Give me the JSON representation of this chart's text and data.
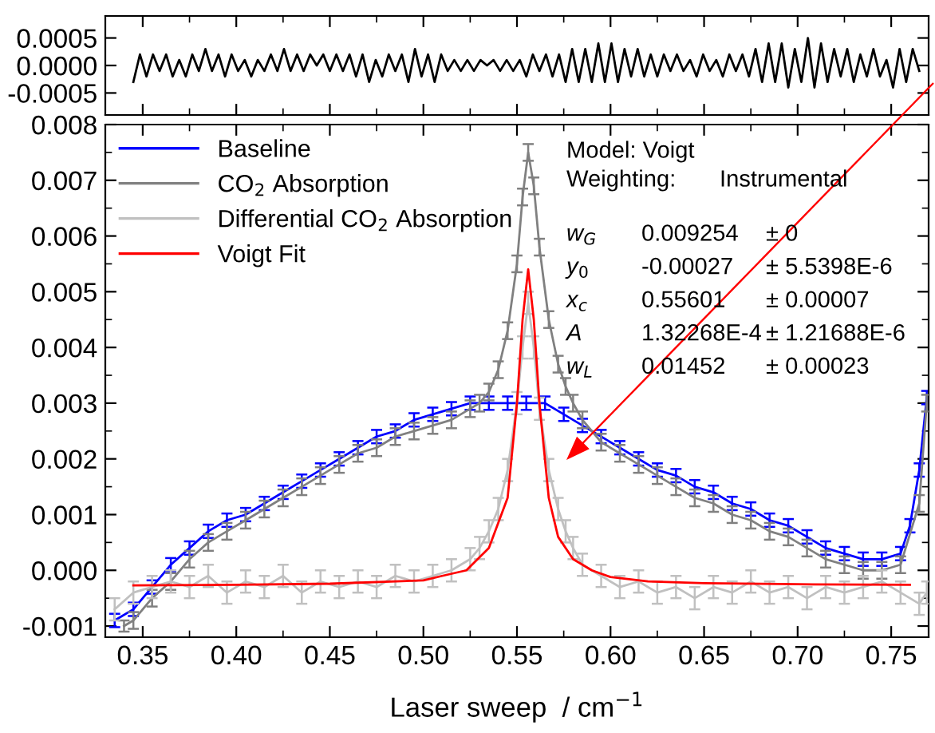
{
  "chart_data": [
    {
      "type": "line",
      "xlim": [
        0.33,
        0.77
      ],
      "xticks": [
        {
          "value": 0.35,
          "label": null
        },
        {
          "value": 0.4,
          "label": null
        },
        {
          "value": 0.45,
          "label": null
        },
        {
          "value": 0.5,
          "label": null
        },
        {
          "value": 0.55,
          "label": null
        },
        {
          "value": 0.6,
          "label": null
        },
        {
          "value": 0.65,
          "label": null
        },
        {
          "value": 0.7,
          "label": null
        },
        {
          "value": 0.75,
          "label": null
        }
      ],
      "ylim": [
        -0.0009,
        0.0009
      ],
      "yticks": [
        {
          "value": -0.0005,
          "label": "-0.0005"
        },
        {
          "value": 0,
          "label": "0.0000"
        },
        {
          "value": 0.0005,
          "label": "0.0005"
        }
      ],
      "tick_labels": "y",
      "grid": false,
      "legend": false,
      "marker": "none",
      "line_style": "solid",
      "series": [
        {
          "color": "#000000",
          "x": [
            0.345,
            0.3485,
            0.352,
            0.3555,
            0.359,
            0.3625,
            0.366,
            0.3695,
            0.373,
            0.3765,
            0.38,
            0.3835,
            0.387,
            0.3905,
            0.394,
            0.3975,
            0.401,
            0.4045,
            0.408,
            0.4115,
            0.415,
            0.4185,
            0.422,
            0.4255,
            0.429,
            0.4325,
            0.436,
            0.4395,
            0.443,
            0.4465,
            0.45,
            0.4535,
            0.457,
            0.4605,
            0.464,
            0.4675,
            0.471,
            0.4745,
            0.478,
            0.4815,
            0.485,
            0.4885,
            0.492,
            0.4955,
            0.499,
            0.5025,
            0.506,
            0.5095,
            0.513,
            0.5165,
            0.52,
            0.5235,
            0.527,
            0.5305,
            0.534,
            0.5375,
            0.541,
            0.5445,
            0.548,
            0.5515,
            0.555,
            0.5585,
            0.562,
            0.5655,
            0.569,
            0.5725,
            0.576,
            0.5795,
            0.583,
            0.5865,
            0.59,
            0.5935,
            0.597,
            0.6005,
            0.604,
            0.6075,
            0.611,
            0.6145,
            0.618,
            0.6215,
            0.625,
            0.6285,
            0.632,
            0.6355,
            0.639,
            0.6425,
            0.646,
            0.6495,
            0.653,
            0.6565,
            0.66,
            0.6635,
            0.667,
            0.6705,
            0.674,
            0.6775,
            0.681,
            0.6845,
            0.688,
            0.6915,
            0.695,
            0.6985,
            0.702,
            0.7055,
            0.709,
            0.7125,
            0.716,
            0.7195,
            0.723,
            0.7265,
            0.73,
            0.7335,
            0.737,
            0.7405,
            0.744,
            0.7475,
            0.751,
            0.7545,
            0.758,
            0.7615,
            0.765
          ],
          "values": [
            -0.0003,
            0.0002,
            -0.0002,
            0.0002,
            -0.0001,
            0.0002,
            -0.0002,
            0.0001,
            -0.0002,
            0.0002,
            -0.0001,
            0.0003,
            -0.0001,
            0.0002,
            -0.0002,
            0.0002,
            -0.0001,
            0.0001,
            -0.0002,
            0.0001,
            -0.0001,
            0.0002,
            -0.0001,
            0.0003,
            -0.0001,
            0.0002,
            -0.0001,
            0.0002,
            0.0,
            0.0002,
            -0.0001,
            0.0002,
            -0.0001,
            0.0002,
            -0.0002,
            0.0002,
            -0.0003,
            0.0001,
            -0.0002,
            0.0002,
            -0.0001,
            0.0002,
            -0.0003,
            0.0003,
            -0.0002,
            0.0002,
            -0.0003,
            0.0002,
            -0.0001,
            0.0001,
            -0.0001,
            0.0001,
            -0.0001,
            0.0001,
            0.0,
            0.0001,
            -0.0001,
            0.0001,
            -0.0001,
            0.0001,
            -0.0002,
            0.0002,
            -0.0001,
            0.0002,
            -0.0002,
            0.0002,
            -0.0003,
            0.0003,
            -0.0003,
            0.0003,
            -0.0003,
            0.0004,
            -0.0003,
            0.0004,
            -0.0003,
            0.0003,
            -0.0002,
            0.0003,
            -0.0002,
            0.0002,
            -0.0002,
            0.0002,
            -0.0001,
            0.0002,
            -0.0001,
            0.0001,
            -0.0002,
            0.0002,
            -0.0001,
            0.0001,
            -0.0002,
            0.0002,
            -0.0001,
            0.0002,
            -0.0002,
            0.0003,
            -0.0003,
            0.0004,
            -0.0003,
            0.0004,
            -0.0004,
            0.0003,
            -0.0003,
            0.0005,
            -0.0004,
            0.0004,
            -0.0003,
            0.0003,
            -0.0002,
            0.0003,
            -0.0003,
            0.0002,
            -0.0002,
            0.0003,
            -0.0002,
            0.0001,
            -0.0004,
            0.0003,
            -0.0003,
            0.0003,
            -0.0001
          ]
        }
      ]
    },
    {
      "type": "line",
      "xlabel": "Laser sweep  / cm$^{−1}$",
      "xlim": [
        0.33,
        0.77
      ],
      "xticks": [
        {
          "value": 0.35,
          "label": "0.35"
        },
        {
          "value": 0.4,
          "label": "0.40"
        },
        {
          "value": 0.45,
          "label": "0.45"
        },
        {
          "value": 0.5,
          "label": "0.50"
        },
        {
          "value": 0.55,
          "label": "0.55"
        },
        {
          "value": 0.6,
          "label": "0.60"
        },
        {
          "value": 0.65,
          "label": "0.65"
        },
        {
          "value": 0.7,
          "label": "0.70"
        },
        {
          "value": 0.75,
          "label": "0.75"
        }
      ],
      "ylim": [
        -0.0012,
        0.008
      ],
      "yticks": [
        {
          "value": -0.001,
          "label": "-0.001"
        },
        {
          "value": 0,
          "label": "0.000"
        },
        0.001,
        0.002,
        0.003,
        0.004,
        0.005,
        0.006,
        0.007,
        0.008
      ],
      "grid": false,
      "legend": "top left",
      "marker": "none",
      "line_style": "solid",
      "annotations": [
        "Model: Voigt",
        "Weighting:",
        "Instrumental",
        "w$_{G}$",
        "0.009254",
        "± 0",
        "y$_{0}$",
        "-0.00027",
        "± 5.5398E-6",
        "x$_{c}$",
        "0.55601",
        "± 0.00007",
        "A",
        "1.32268E-4",
        "± 1.21688E-6",
        "w$_{L}$",
        "0.01452",
        "± 0.00023"
      ],
      "series": [
        {
          "name": "Baseline",
          "color": "#0000ff",
          "x": [
            0.335,
            0.345,
            0.355,
            0.365,
            0.375,
            0.385,
            0.395,
            0.405,
            0.415,
            0.425,
            0.435,
            0.445,
            0.455,
            0.465,
            0.475,
            0.485,
            0.495,
            0.505,
            0.515,
            0.525,
            0.535,
            0.545,
            0.555,
            0.565,
            0.575,
            0.585,
            0.595,
            0.605,
            0.615,
            0.625,
            0.635,
            0.645,
            0.655,
            0.665,
            0.675,
            0.685,
            0.695,
            0.705,
            0.715,
            0.725,
            0.735,
            0.745,
            0.755,
            0.76,
            0.765,
            0.769
          ],
          "values": [
            -0.0009,
            -0.0007,
            -0.0003,
            0.0001,
            0.0004,
            0.0007,
            0.0009,
            0.001,
            0.0012,
            0.0014,
            0.0016,
            0.0018,
            0.002,
            0.0022,
            0.0024,
            0.0025,
            0.0027,
            0.0028,
            0.0029,
            0.003,
            0.003,
            0.003,
            0.003,
            0.003,
            0.0028,
            0.0026,
            0.0024,
            0.0022,
            0.002,
            0.0018,
            0.0017,
            0.0015,
            0.0014,
            0.0012,
            0.0011,
            0.0009,
            0.0008,
            0.0006,
            0.0004,
            0.0003,
            0.0002,
            0.0002,
            0.0003,
            0.0008,
            0.0018,
            0.0031
          ],
          "errors": [
            0.00012,
            0.00012,
            0.00012,
            0.00012,
            0.00012,
            0.00012,
            0.00012,
            0.00012,
            0.00012,
            0.00012,
            0.00012,
            0.00012,
            0.00012,
            0.00012,
            0.00012,
            0.00012,
            0.00012,
            0.00012,
            0.00012,
            0.00012,
            0.00012,
            0.00012,
            0.00012,
            0.00012,
            0.00012,
            0.00012,
            0.00012,
            0.00012,
            0.00012,
            0.00012,
            0.00012,
            0.00012,
            0.00012,
            0.00012,
            0.00012,
            0.00012,
            0.00012,
            0.00012,
            0.00012,
            0.00012,
            0.00012,
            0.00012,
            0.00012,
            0.00012,
            0.00012,
            0.00012
          ]
        },
        {
          "name": "CO$_{2}$ Absorption",
          "color": "#808080",
          "x": [
            0.34,
            0.345,
            0.355,
            0.365,
            0.375,
            0.385,
            0.395,
            0.405,
            0.415,
            0.425,
            0.435,
            0.445,
            0.455,
            0.465,
            0.475,
            0.485,
            0.495,
            0.505,
            0.515,
            0.525,
            0.53,
            0.535,
            0.54,
            0.545,
            0.55,
            0.553,
            0.556,
            0.559,
            0.562,
            0.567,
            0.572,
            0.576,
            0.58,
            0.585,
            0.595,
            0.605,
            0.615,
            0.625,
            0.635,
            0.645,
            0.655,
            0.665,
            0.675,
            0.685,
            0.695,
            0.705,
            0.715,
            0.725,
            0.735,
            0.745,
            0.755,
            0.765,
            0.769
          ],
          "values": [
            -0.001,
            -0.0009,
            -0.0005,
            -0.0002,
            0.0002,
            0.0005,
            0.0007,
            0.0009,
            0.0011,
            0.0013,
            0.0015,
            0.0017,
            0.0019,
            0.0021,
            0.0022,
            0.0024,
            0.0025,
            0.0026,
            0.0027,
            0.0029,
            0.003,
            0.0032,
            0.0036,
            0.0043,
            0.0055,
            0.0067,
            0.0075,
            0.0069,
            0.0058,
            0.0045,
            0.0037,
            0.0033,
            0.003,
            0.0027,
            0.0023,
            0.0021,
            0.0019,
            0.0017,
            0.0015,
            0.0013,
            0.0012,
            0.001,
            0.0009,
            0.0007,
            0.0006,
            0.0004,
            0.0002,
            0.0001,
            0.0,
            0.0,
            0.0001,
            0.0012,
            0.003
          ],
          "errors": [
            0.0001,
            0.00015,
            0.00015,
            0.00015,
            0.00015,
            0.00015,
            0.00015,
            0.00015,
            0.00015,
            0.00015,
            0.00015,
            0.00015,
            0.00015,
            0.00015,
            0.00015,
            0.00015,
            0.00015,
            0.00015,
            0.00015,
            0.00015,
            0.00015,
            0.00015,
            0.00015,
            0.00015,
            0.00015,
            0.00015,
            0.00015,
            0.00015,
            0.00015,
            0.00015,
            0.00015,
            0.00015,
            0.00015,
            0.00015,
            0.00015,
            0.00015,
            0.00015,
            0.00015,
            0.00015,
            0.00015,
            0.00015,
            0.00015,
            0.00015,
            0.00015,
            0.00015,
            0.00015,
            0.00015,
            0.00015,
            0.00015,
            0.00015,
            0.00015,
            0.00015,
            0.00015
          ]
        },
        {
          "name": "Differential CO$_{2}$ Absorption",
          "color": "#c0c0c0",
          "x": [
            0.335,
            0.345,
            0.355,
            0.365,
            0.375,
            0.385,
            0.395,
            0.405,
            0.415,
            0.425,
            0.435,
            0.445,
            0.455,
            0.465,
            0.475,
            0.485,
            0.495,
            0.505,
            0.515,
            0.525,
            0.53,
            0.535,
            0.54,
            0.545,
            0.55,
            0.553,
            0.556,
            0.559,
            0.562,
            0.567,
            0.572,
            0.576,
            0.58,
            0.585,
            0.595,
            0.605,
            0.615,
            0.625,
            0.635,
            0.645,
            0.655,
            0.665,
            0.675,
            0.685,
            0.695,
            0.705,
            0.715,
            0.725,
            0.735,
            0.745,
            0.755,
            0.765,
            0.769
          ],
          "values": [
            -0.0007,
            -0.0004,
            -0.0003,
            -0.0002,
            -0.0003,
            -0.0001,
            -0.0004,
            -0.0002,
            -0.0003,
            -0.0001,
            -0.0004,
            -0.0002,
            -0.0003,
            -0.0002,
            -0.0003,
            -0.0001,
            -0.0002,
            -0.0001,
            0.0,
            0.0002,
            0.0004,
            0.0007,
            0.0011,
            0.0018,
            0.003,
            0.004,
            0.0048,
            0.004,
            0.0029,
            0.0018,
            0.0011,
            0.0007,
            0.0004,
            0.0001,
            -0.0001,
            -0.0003,
            -0.0002,
            -0.0004,
            -0.0003,
            -0.0005,
            -0.0003,
            -0.0004,
            -0.0002,
            -0.0004,
            -0.0003,
            -0.0005,
            -0.0003,
            -0.0004,
            -0.0003,
            -0.0002,
            -0.0004,
            -0.0006,
            -0.0004
          ],
          "errors": [
            0.0002,
            0.0002,
            0.0002,
            0.0002,
            0.0002,
            0.0002,
            0.0002,
            0.0002,
            0.0002,
            0.0002,
            0.0002,
            0.0002,
            0.0002,
            0.0002,
            0.0002,
            0.0002,
            0.0002,
            0.0002,
            0.0002,
            0.0002,
            0.0002,
            0.0002,
            0.0002,
            0.0002,
            0.0002,
            0.0002,
            0.0002,
            0.0002,
            0.0002,
            0.0002,
            0.0002,
            0.0002,
            0.0002,
            0.0002,
            0.0002,
            0.0002,
            0.0002,
            0.0002,
            0.0002,
            0.0002,
            0.0002,
            0.0002,
            0.0002,
            0.0002,
            0.0002,
            0.0002,
            0.0002,
            0.0002,
            0.0002,
            0.0002,
            0.0002,
            0.0002,
            0.0002
          ]
        },
        {
          "name": "Voigt Fit",
          "color": "#ff0000",
          "x": [
            0.345,
            0.4,
            0.45,
            0.5,
            0.51,
            0.523,
            0.535,
            0.545,
            0.55,
            0.553,
            0.556,
            0.559,
            0.562,
            0.567,
            0.572,
            0.58,
            0.59,
            0.6,
            0.62,
            0.65,
            0.7,
            0.76
          ],
          "values": [
            -0.00027,
            -0.00026,
            -0.00024,
            -0.00018,
            -0.0001,
            0.0,
            0.0004,
            0.0013,
            0.003,
            0.0045,
            0.0054,
            0.0045,
            0.003,
            0.0013,
            0.0006,
            0.0002,
            0.0,
            -0.00012,
            -0.0002,
            -0.00023,
            -0.00025,
            -0.00026
          ]
        }
      ]
    }
  ]
}
